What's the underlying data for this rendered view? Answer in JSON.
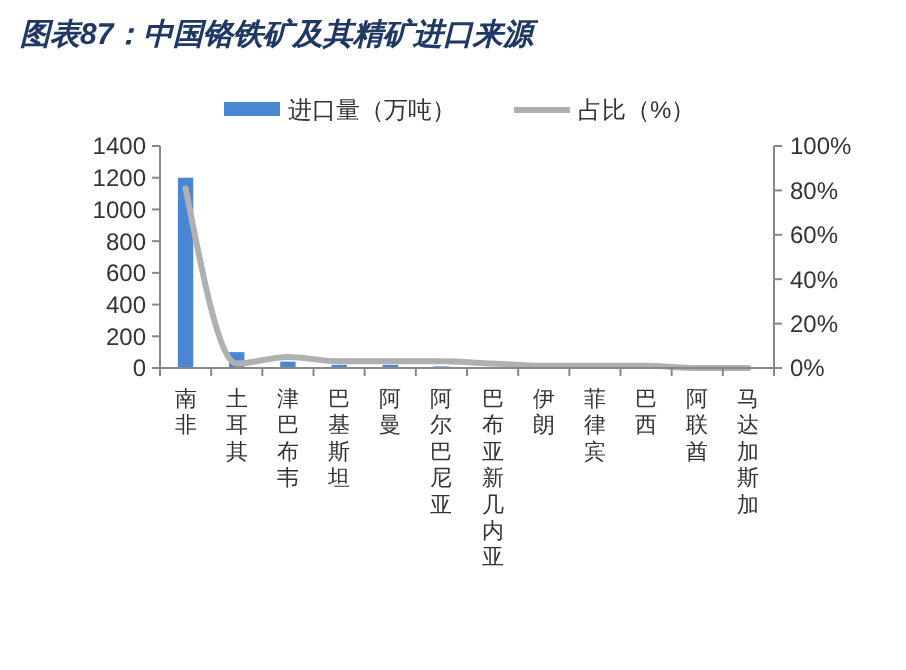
{
  "chart_data": {
    "type": "bar",
    "title": "图表87：中国铬铁矿及其精矿进口来源",
    "categories": [
      "南非",
      "土耳其",
      "津巴布韦",
      "巴基斯坦",
      "阿曼",
      "阿尔巴尼亚",
      "巴布亚新几内亚",
      "伊朗",
      "菲律宾",
      "巴西",
      "阿联酋",
      "马达加斯加"
    ],
    "series": [
      {
        "name": "进口量（万吨）",
        "color": "#4a86d4",
        "values": [
          1200,
          100,
          40,
          20,
          20,
          10,
          null,
          0,
          0,
          0,
          0,
          0
        ]
      },
      {
        "name": "占比（%）",
        "type": "line",
        "axis": "y2",
        "color": "#b0b0b0",
        "values": [
          81,
          2,
          5,
          3,
          3,
          3,
          2,
          1,
          1,
          1,
          0,
          0
        ]
      }
    ],
    "ylim": [
      0,
      1400
    ],
    "yticks": [
      0,
      200,
      400,
      600,
      800,
      1000,
      1200,
      1400
    ],
    "y2lim": [
      0,
      100
    ],
    "y2ticks": [
      {
        "value": 0,
        "label": "0%"
      },
      {
        "value": 20,
        "label": "20%"
      },
      {
        "value": 40,
        "label": "40%"
      },
      {
        "value": 60,
        "label": "60%"
      },
      {
        "value": 80,
        "label": "80%"
      },
      {
        "value": 100,
        "label": "100%"
      }
    ],
    "legend": "top",
    "grid": false
  }
}
